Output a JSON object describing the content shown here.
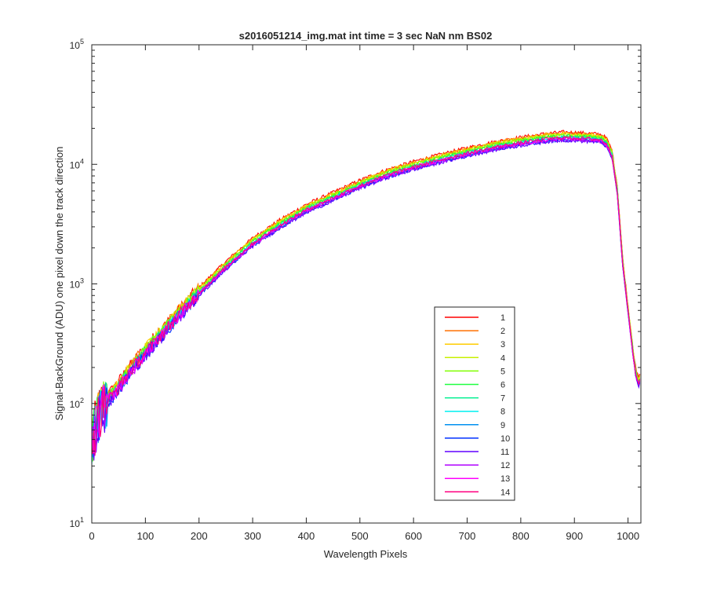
{
  "chart_data": {
    "type": "line",
    "title": "s2016051214_img.mat int time = 3 sec  NaN nm BS02",
    "xlabel": "Wavelength Pixels",
    "ylabel": "Signal-BackGround (ADU) one pixel down the track direction",
    "xlim": [
      0,
      1024
    ],
    "ylim": [
      10,
      100000
    ],
    "yscale": "log",
    "grid": false,
    "legend_position": "lower-right",
    "x_ticks": [
      0,
      100,
      200,
      300,
      400,
      500,
      600,
      700,
      800,
      900,
      1000
    ],
    "x_tick_labels": [
      "0",
      "100",
      "200",
      "300",
      "400",
      "500",
      "600",
      "700",
      "800",
      "900",
      "1000"
    ],
    "y_ticks": [
      {
        "value": 10,
        "base": "10",
        "exp": "1"
      },
      {
        "value": 100,
        "base": "10",
        "exp": "2"
      },
      {
        "value": 1000,
        "base": "10",
        "exp": "3"
      },
      {
        "value": 10000,
        "base": "10",
        "exp": "4"
      },
      {
        "value": 100000,
        "base": "10",
        "exp": "5"
      }
    ],
    "profile": {
      "x": [
        0,
        10,
        20,
        40,
        60,
        80,
        100,
        150,
        200,
        250,
        300,
        350,
        400,
        450,
        500,
        550,
        600,
        650,
        700,
        750,
        800,
        850,
        880,
        900,
        930,
        950,
        960,
        970,
        980,
        990,
        1000,
        1010,
        1015,
        1020,
        1023
      ],
      "y": [
        50,
        80,
        100,
        120,
        160,
        210,
        270,
        480,
        850,
        1400,
        2200,
        3100,
        4200,
        5300,
        6700,
        8200,
        9600,
        11000,
        12500,
        14000,
        15300,
        16500,
        16900,
        16800,
        16500,
        16200,
        15000,
        12000,
        6000,
        1500,
        600,
        250,
        170,
        150,
        160
      ]
    },
    "series": [
      {
        "name": "1",
        "color": "#ff0000",
        "scale": 1.1
      },
      {
        "name": "2",
        "color": "#ff7000",
        "scale": 1.08
      },
      {
        "name": "3",
        "color": "#ffcc00",
        "scale": 1.07
      },
      {
        "name": "4",
        "color": "#c8f000",
        "scale": 1.05
      },
      {
        "name": "5",
        "color": "#80ff00",
        "scale": 1.04
      },
      {
        "name": "6",
        "color": "#20ff40",
        "scale": 1.02
      },
      {
        "name": "7",
        "color": "#00f090",
        "scale": 1.0
      },
      {
        "name": "8",
        "color": "#00f0f0",
        "scale": 0.98
      },
      {
        "name": "9",
        "color": "#0090f0",
        "scale": 0.97
      },
      {
        "name": "10",
        "color": "#0030ff",
        "scale": 0.95
      },
      {
        "name": "11",
        "color": "#6000ff",
        "scale": 0.94
      },
      {
        "name": "12",
        "color": "#b000ff",
        "scale": 0.96
      },
      {
        "name": "13",
        "color": "#ff00ff",
        "scale": 0.98
      },
      {
        "name": "14",
        "color": "#ff0080",
        "scale": 0.99
      }
    ]
  }
}
